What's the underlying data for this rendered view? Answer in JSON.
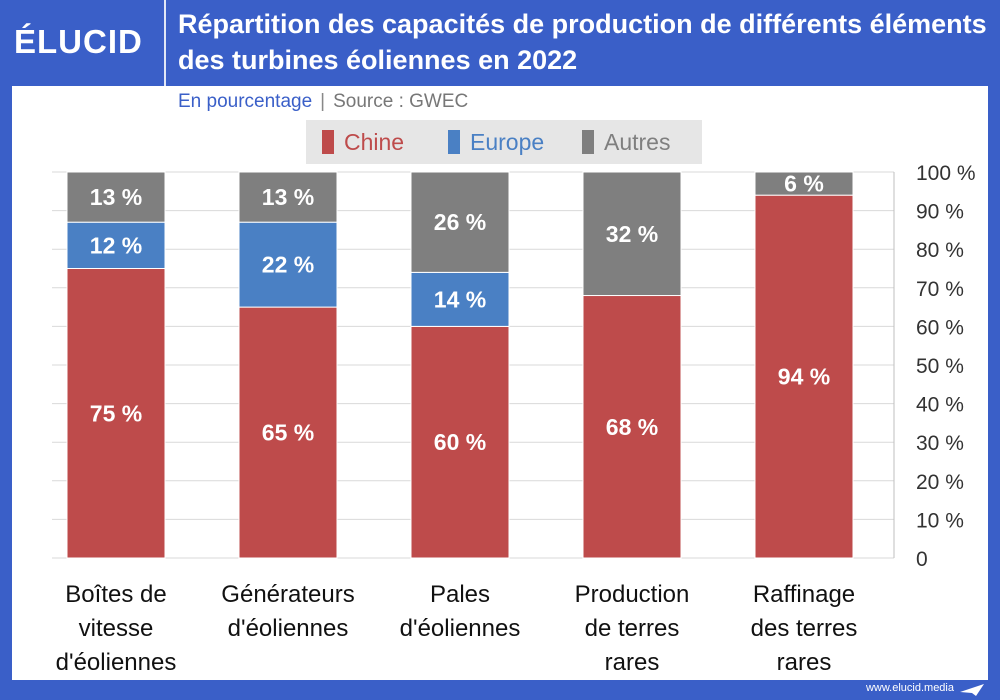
{
  "brand": {
    "logo": "ÉLUCID",
    "footer": "www.elucid.media"
  },
  "header": {
    "title": "Répartition des capacités de production de différents éléments des turbines éoliennes en 2022"
  },
  "subtitle": {
    "text": "En pourcentage",
    "separator": "|",
    "source": "Source : GWEC"
  },
  "colors": {
    "Chine": "#be4b4b",
    "Europe": "#4a80c4",
    "Autres": "#7f7f7f"
  },
  "chart_data": {
    "type": "bar",
    "stacked": true,
    "categories": [
      [
        "Boîtes de",
        "vitesse",
        "d'éoliennes"
      ],
      [
        "Générateurs",
        "d'éoliennes"
      ],
      [
        "Pales",
        "d'éoliennes"
      ],
      [
        "Production",
        "de terres",
        "rares"
      ],
      [
        "Raffinage",
        "des terres",
        "rares"
      ]
    ],
    "series": [
      {
        "name": "Chine",
        "values": [
          75,
          65,
          60,
          68,
          94
        ],
        "labels": [
          "75 %",
          "65 %",
          "60 %",
          "68 %",
          "94 %"
        ]
      },
      {
        "name": "Europe",
        "values": [
          12,
          22,
          14,
          0,
          0
        ],
        "labels": [
          "12 %",
          "22 %",
          "14 %",
          "",
          ""
        ]
      },
      {
        "name": "Autres",
        "values": [
          13,
          13,
          26,
          32,
          6
        ],
        "labels": [
          "13 %",
          "13 %",
          "26 %",
          "32 %",
          "6 %"
        ]
      }
    ],
    "ylim": [
      0,
      100
    ],
    "yticks": [
      0,
      10,
      20,
      30,
      40,
      50,
      60,
      70,
      80,
      90,
      100
    ],
    "ytick_labels": [
      "0",
      "10 %",
      "20 %",
      "30 %",
      "40 %",
      "50 %",
      "60 %",
      "70 %",
      "80 %",
      "90 %",
      "100 %"
    ],
    "y_axis_position": "right",
    "grid": true,
    "legend_position": "top"
  }
}
